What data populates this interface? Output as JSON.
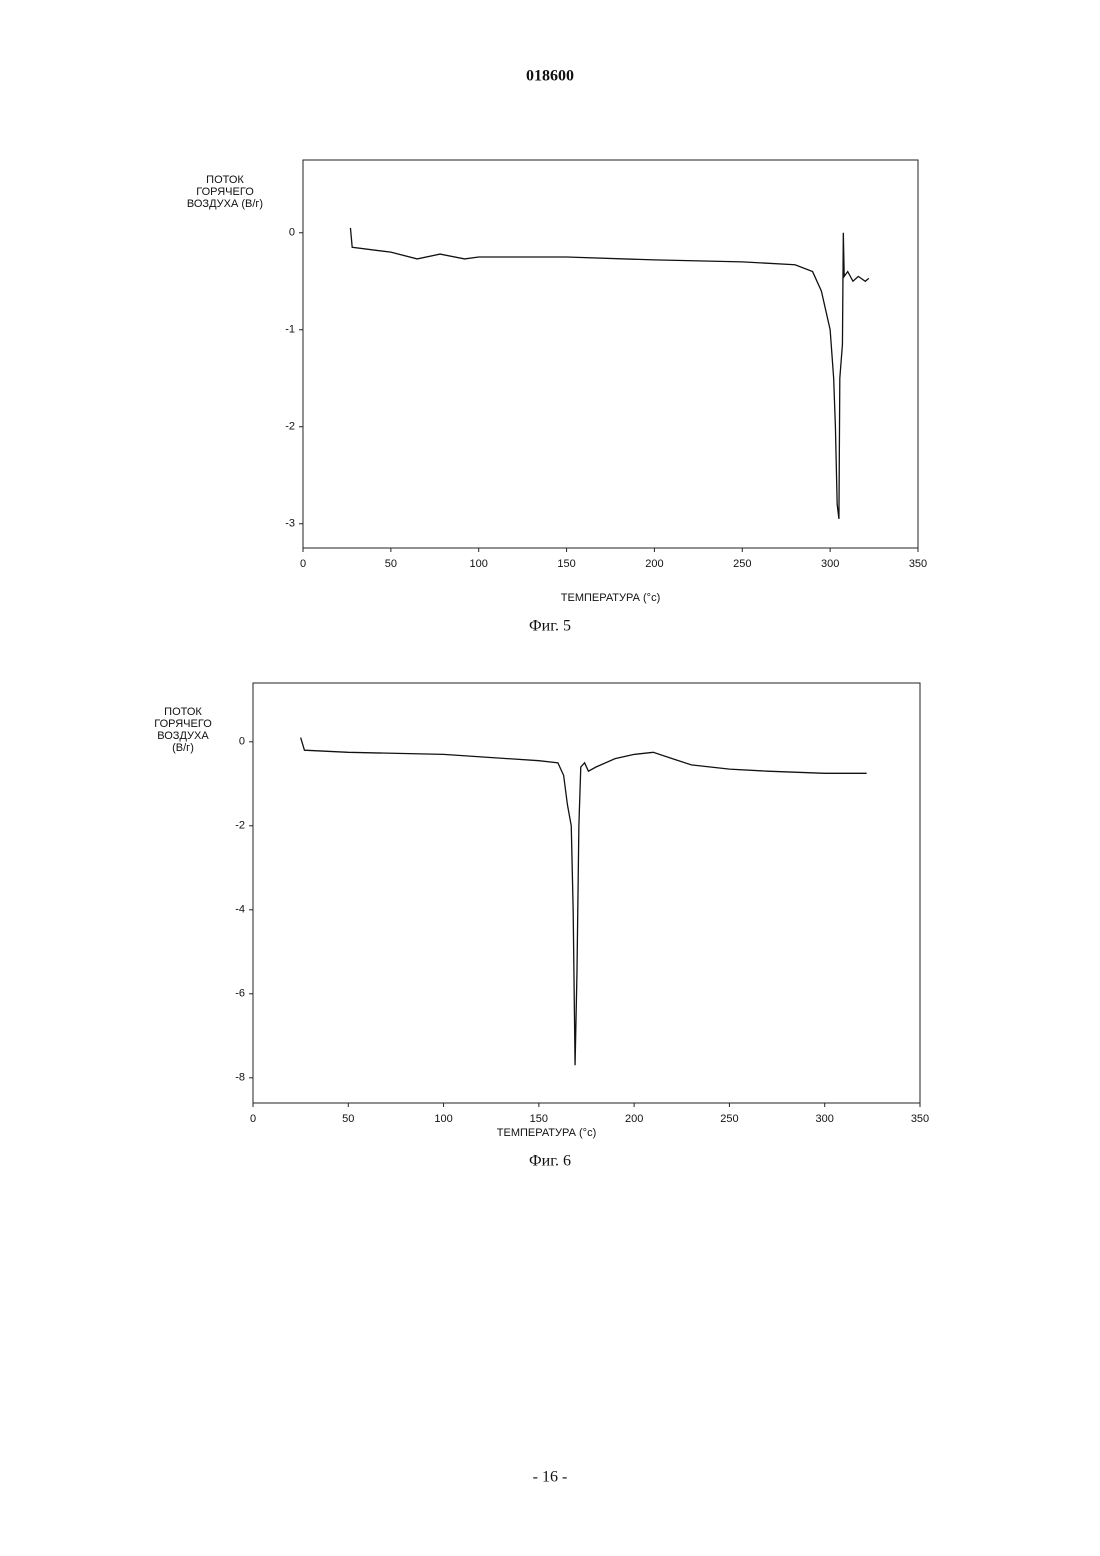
{
  "header": "018600",
  "footer": "- 16 -",
  "chart_data": [
    {
      "type": "line",
      "ylabel_lines": [
        "ПОТОК",
        "ГОРЯЧЕГО",
        "ВОЗДУХА (В/г)"
      ],
      "xlabel": "ТЕМПЕРАТУРА  (°c)",
      "caption": "Фиг. 5",
      "xlim": [
        0,
        350
      ],
      "xticks": [
        0,
        50,
        100,
        150,
        200,
        250,
        300,
        350
      ],
      "ylim": [
        -3.25,
        0.75
      ],
      "yticks": [
        -3,
        -2,
        -1,
        0
      ],
      "grid": false,
      "x": [
        27,
        28,
        50,
        65,
        78,
        92,
        100,
        150,
        200,
        250,
        280,
        290,
        295,
        300,
        302,
        303,
        304,
        305,
        305.5,
        307,
        307.5,
        308,
        310,
        313,
        316,
        320,
        322
      ],
      "series": [
        {
          "color": "#111111",
          "values": [
            0.05,
            -0.15,
            -0.2,
            -0.27,
            -0.22,
            -0.27,
            -0.25,
            -0.25,
            -0.28,
            -0.3,
            -0.33,
            -0.4,
            -0.6,
            -1.0,
            -1.5,
            -2.0,
            -2.8,
            -2.95,
            -1.5,
            -1.15,
            0.0,
            -0.45,
            -0.4,
            -0.5,
            -0.45,
            -0.5,
            -0.47
          ]
        }
      ]
    },
    {
      "type": "line",
      "ylabel_lines": [
        "ПОТОК",
        "ГОРЯЧЕГО",
        "ВОЗДУХА",
        "(В/г)"
      ],
      "xlabel": "ТЕМПЕРАТУРА  (°c)",
      "caption": "Фиг. 6",
      "xlim": [
        0,
        350
      ],
      "xticks": [
        0,
        50,
        100,
        150,
        200,
        250,
        300,
        350
      ],
      "ylim": [
        -8.6,
        1.4
      ],
      "yticks": [
        -8,
        -6,
        -4,
        -2,
        0
      ],
      "grid": false,
      "x": [
        25,
        27,
        50,
        100,
        150,
        160,
        163,
        165,
        167,
        168,
        169,
        170,
        171,
        172,
        174,
        176,
        180,
        190,
        200,
        210,
        220,
        230,
        250,
        270,
        300,
        322
      ],
      "series": [
        {
          "color": "#111111",
          "values": [
            0.1,
            -0.2,
            -0.25,
            -0.3,
            -0.45,
            -0.5,
            -0.8,
            -1.5,
            -2.0,
            -4.0,
            -7.7,
            -5.5,
            -2.0,
            -0.6,
            -0.5,
            -0.7,
            -0.6,
            -0.4,
            -0.3,
            -0.25,
            -0.4,
            -0.55,
            -0.65,
            -0.7,
            -0.75,
            -0.75
          ]
        }
      ]
    }
  ]
}
